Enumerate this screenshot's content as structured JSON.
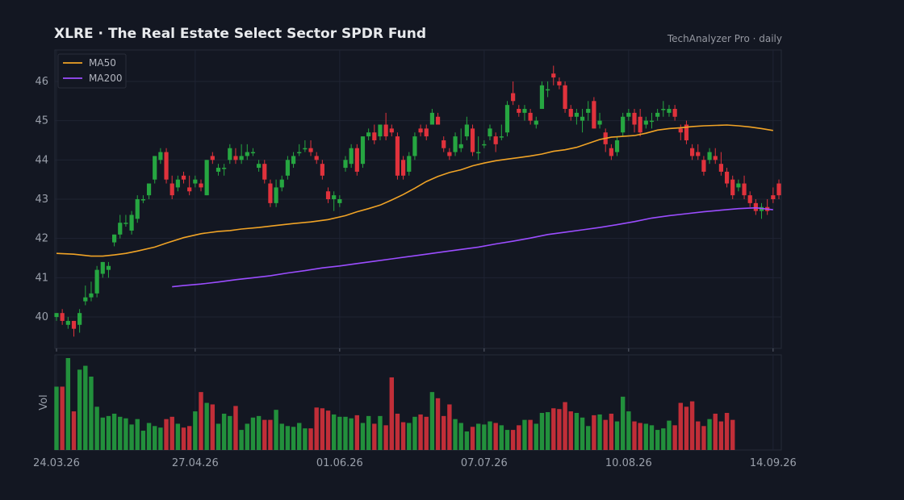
{
  "header": {
    "title": "XLRE  ·  The Real Estate Select Sector SPDR Fund",
    "brand": "TechAnalyzer Pro · daily"
  },
  "colors": {
    "background": "#131722",
    "grid": "#1f2433",
    "up": "#26a641",
    "down": "#e0323c",
    "ma50": "#f0a326",
    "ma200": "#9b4dff",
    "text": "#9aa0ab"
  },
  "chart_data": {
    "type": "candlestick",
    "title": "XLRE  ·  The Real Estate Select Sector SPDR Fund",
    "ylim": [
      39.2,
      46.8
    ],
    "y_ticks": [
      40,
      41,
      42,
      43,
      44,
      45,
      46
    ],
    "x_tick_labels": [
      "24.03.26",
      "27.04.26",
      "01.06.26",
      "07.07.26",
      "10.08.26",
      "14.09.26"
    ],
    "x_tick_index": [
      0,
      24,
      49,
      74,
      99,
      124
    ],
    "legend": [
      {
        "name": "MA50",
        "color": "#f0a326"
      },
      {
        "name": "MA200",
        "color": "#9b4dff"
      }
    ],
    "volume_label": "Vol",
    "ohlc": [
      [
        40.0,
        40.1,
        39.9,
        40.1
      ],
      [
        40.1,
        40.2,
        39.8,
        39.9
      ],
      [
        39.8,
        40.0,
        39.7,
        39.9
      ],
      [
        39.9,
        39.9,
        39.5,
        39.7
      ],
      [
        39.8,
        40.2,
        39.6,
        40.1
      ],
      [
        40.4,
        40.8,
        40.3,
        40.5
      ],
      [
        40.5,
        40.9,
        40.4,
        40.6
      ],
      [
        40.6,
        41.3,
        40.5,
        41.2
      ],
      [
        41.1,
        41.4,
        41.0,
        41.4
      ],
      [
        41.2,
        41.4,
        41.0,
        41.3
      ],
      [
        41.9,
        42.1,
        41.8,
        42.1
      ],
      [
        42.1,
        42.6,
        42.0,
        42.4
      ],
      [
        42.4,
        42.6,
        42.3,
        42.4
      ],
      [
        42.2,
        42.7,
        42.1,
        42.6
      ],
      [
        42.5,
        43.1,
        42.4,
        43.0
      ],
      [
        43.0,
        43.1,
        42.9,
        43.0
      ],
      [
        43.1,
        43.4,
        43.0,
        43.4
      ],
      [
        43.5,
        44.1,
        43.4,
        44.1
      ],
      [
        44.0,
        44.3,
        43.9,
        44.2
      ],
      [
        44.2,
        44.3,
        43.4,
        43.5
      ],
      [
        43.4,
        43.6,
        43.0,
        43.1
      ],
      [
        43.3,
        43.6,
        43.2,
        43.5
      ],
      [
        43.6,
        43.7,
        43.4,
        43.5
      ],
      [
        43.3,
        43.6,
        43.1,
        43.2
      ],
      [
        43.4,
        43.6,
        43.3,
        43.5
      ],
      [
        43.4,
        43.5,
        43.2,
        43.3
      ],
      [
        43.1,
        44.0,
        43.1,
        44.0
      ],
      [
        44.1,
        44.2,
        43.9,
        44.0
      ],
      [
        43.7,
        43.9,
        43.6,
        43.8
      ],
      [
        43.8,
        43.9,
        43.6,
        43.8
      ],
      [
        44.0,
        44.4,
        43.9,
        44.3
      ],
      [
        44.1,
        44.3,
        43.9,
        44.0
      ],
      [
        44.0,
        44.4,
        43.9,
        44.1
      ],
      [
        44.1,
        44.4,
        44.0,
        44.2
      ],
      [
        44.2,
        44.3,
        44.1,
        44.2
      ],
      [
        43.8,
        44.0,
        43.7,
        43.9
      ],
      [
        43.9,
        44.0,
        43.4,
        43.5
      ],
      [
        43.4,
        43.5,
        42.8,
        42.9
      ],
      [
        42.9,
        43.5,
        42.8,
        43.3
      ],
      [
        43.3,
        43.6,
        43.2,
        43.5
      ],
      [
        43.6,
        44.1,
        43.5,
        44.0
      ],
      [
        43.9,
        44.2,
        43.8,
        44.1
      ],
      [
        44.2,
        44.4,
        44.1,
        44.2
      ],
      [
        44.3,
        44.5,
        44.2,
        44.3
      ],
      [
        44.3,
        44.5,
        44.1,
        44.2
      ],
      [
        44.1,
        44.2,
        43.9,
        44.0
      ],
      [
        43.9,
        44.0,
        43.5,
        43.6
      ],
      [
        43.2,
        43.3,
        42.9,
        43.0
      ],
      [
        43.0,
        43.2,
        42.7,
        43.1
      ],
      [
        42.9,
        43.1,
        42.8,
        43.0
      ],
      [
        43.8,
        44.1,
        43.7,
        44.0
      ],
      [
        43.9,
        44.4,
        43.8,
        44.3
      ],
      [
        44.3,
        44.4,
        43.6,
        43.7
      ],
      [
        43.9,
        44.6,
        43.8,
        44.6
      ],
      [
        44.6,
        44.8,
        44.5,
        44.7
      ],
      [
        44.7,
        44.9,
        44.4,
        44.5
      ],
      [
        44.6,
        44.9,
        44.5,
        44.9
      ],
      [
        44.9,
        45.2,
        44.5,
        44.6
      ],
      [
        44.8,
        44.9,
        44.6,
        44.7
      ],
      [
        44.6,
        44.7,
        43.5,
        43.6
      ],
      [
        44.0,
        44.1,
        43.5,
        43.6
      ],
      [
        43.7,
        44.2,
        43.6,
        44.1
      ],
      [
        44.1,
        44.7,
        44.0,
        44.6
      ],
      [
        44.8,
        44.9,
        44.6,
        44.7
      ],
      [
        44.8,
        44.9,
        44.5,
        44.6
      ],
      [
        44.9,
        45.3,
        44.9,
        45.2
      ],
      [
        45.1,
        45.2,
        44.9,
        44.9
      ],
      [
        44.5,
        44.6,
        44.2,
        44.3
      ],
      [
        44.2,
        44.3,
        44.0,
        44.1
      ],
      [
        44.2,
        44.7,
        44.1,
        44.6
      ],
      [
        44.3,
        44.8,
        44.2,
        44.4
      ],
      [
        44.6,
        45.1,
        44.5,
        44.9
      ],
      [
        44.8,
        44.9,
        44.1,
        44.2
      ],
      [
        44.2,
        44.6,
        44.0,
        44.2
      ],
      [
        44.4,
        44.5,
        44.3,
        44.4
      ],
      [
        44.6,
        44.9,
        44.5,
        44.8
      ],
      [
        44.6,
        44.7,
        44.2,
        44.4
      ],
      [
        44.6,
        44.9,
        44.5,
        44.6
      ],
      [
        44.7,
        45.5,
        44.6,
        45.4
      ],
      [
        45.7,
        46.0,
        45.4,
        45.5
      ],
      [
        45.3,
        45.4,
        45.1,
        45.2
      ],
      [
        45.2,
        45.4,
        45.0,
        45.3
      ],
      [
        45.2,
        45.3,
        44.9,
        45.0
      ],
      [
        44.9,
        45.1,
        44.8,
        45.0
      ],
      [
        45.3,
        46.0,
        45.3,
        45.9
      ],
      [
        45.8,
        46.0,
        45.6,
        45.8
      ],
      [
        46.2,
        46.4,
        45.9,
        46.1
      ],
      [
        46.0,
        46.1,
        45.8,
        45.9
      ],
      [
        45.9,
        46.0,
        45.2,
        45.3
      ],
      [
        45.3,
        45.4,
        45.0,
        45.1
      ],
      [
        45.1,
        45.3,
        44.9,
        45.2
      ],
      [
        45.0,
        45.3,
        44.7,
        45.1
      ],
      [
        45.2,
        45.5,
        45.0,
        45.3
      ],
      [
        45.5,
        45.6,
        44.8,
        44.8
      ],
      [
        44.9,
        45.2,
        44.8,
        45.0
      ],
      [
        44.7,
        44.8,
        44.2,
        44.4
      ],
      [
        44.3,
        44.4,
        44.0,
        44.1
      ],
      [
        44.2,
        44.6,
        44.1,
        44.5
      ],
      [
        44.7,
        45.2,
        44.6,
        45.1
      ],
      [
        45.1,
        45.3,
        45.0,
        45.2
      ],
      [
        45.2,
        45.3,
        44.7,
        44.9
      ],
      [
        45.1,
        45.3,
        44.6,
        44.7
      ],
      [
        44.9,
        45.1,
        44.8,
        45.0
      ],
      [
        45.0,
        45.2,
        44.8,
        45.0
      ],
      [
        45.1,
        45.3,
        45.0,
        45.2
      ],
      [
        45.3,
        45.5,
        45.1,
        45.3
      ],
      [
        45.2,
        45.4,
        45.1,
        45.3
      ],
      [
        45.3,
        45.4,
        45.0,
        45.1
      ],
      [
        44.8,
        44.9,
        44.5,
        44.7
      ],
      [
        44.9,
        45.0,
        44.4,
        44.5
      ],
      [
        44.3,
        44.4,
        44.0,
        44.1
      ],
      [
        44.2,
        44.4,
        44.0,
        44.1
      ],
      [
        44.0,
        44.1,
        43.6,
        43.7
      ],
      [
        44.0,
        44.3,
        43.9,
        44.2
      ],
      [
        44.1,
        44.3,
        43.9,
        44.0
      ],
      [
        43.9,
        44.2,
        43.6,
        43.7
      ],
      [
        43.7,
        43.8,
        43.3,
        43.4
      ],
      [
        43.5,
        43.6,
        43.0,
        43.1
      ],
      [
        43.3,
        43.5,
        43.2,
        43.4
      ],
      [
        43.4,
        43.6,
        43.0,
        43.1
      ],
      [
        43.1,
        43.2,
        42.8,
        42.9
      ],
      [
        42.9,
        43.0,
        42.6,
        42.7
      ],
      [
        42.7,
        42.9,
        42.5,
        42.8
      ],
      [
        42.8,
        43.0,
        42.6,
        42.7
      ],
      [
        43.1,
        43.3,
        42.9,
        43.0
      ],
      [
        43.4,
        43.5,
        43.0,
        43.1
      ]
    ],
    "volume": [
      82,
      82,
      119,
      50,
      104,
      109,
      95,
      56,
      42,
      44,
      47,
      43,
      41,
      33,
      40,
      25,
      35,
      31,
      29,
      40,
      43,
      34,
      29,
      31,
      50,
      75,
      61,
      59,
      34,
      47,
      44,
      57,
      26,
      34,
      42,
      44,
      39,
      39,
      52,
      34,
      31,
      30,
      35,
      28,
      28,
      55,
      54,
      51,
      46,
      43,
      43,
      41,
      45,
      35,
      44,
      34,
      44,
      32,
      94,
      47,
      36,
      35,
      43,
      46,
      43,
      75,
      67,
      44,
      59,
      40,
      35,
      24,
      30,
      34,
      33,
      37,
      35,
      32,
      26,
      26,
      32,
      39,
      39,
      34,
      48,
      49,
      54,
      53,
      62,
      50,
      48,
      42,
      31,
      45,
      46,
      39,
      47,
      37,
      69,
      50,
      37,
      35,
      34,
      32,
      26,
      28,
      38,
      32,
      61,
      56,
      63,
      37,
      31,
      40,
      47,
      37,
      48,
      39
    ],
    "ma50": [
      [
        0,
        41.62
      ],
      [
        3,
        41.6
      ],
      [
        6,
        41.55
      ],
      [
        8,
        41.55
      ],
      [
        10,
        41.58
      ],
      [
        12,
        41.62
      ],
      [
        14,
        41.68
      ],
      [
        17,
        41.78
      ],
      [
        19,
        41.88
      ],
      [
        22,
        42.02
      ],
      [
        25,
        42.12
      ],
      [
        28,
        42.18
      ],
      [
        30,
        42.2
      ],
      [
        32,
        42.24
      ],
      [
        35,
        42.28
      ],
      [
        38,
        42.33
      ],
      [
        41,
        42.38
      ],
      [
        44,
        42.42
      ],
      [
        47,
        42.48
      ],
      [
        50,
        42.58
      ],
      [
        52,
        42.68
      ],
      [
        54,
        42.76
      ],
      [
        56,
        42.85
      ],
      [
        58,
        42.98
      ],
      [
        60,
        43.12
      ],
      [
        62,
        43.28
      ],
      [
        64,
        43.45
      ],
      [
        66,
        43.58
      ],
      [
        68,
        43.68
      ],
      [
        70,
        43.75
      ],
      [
        72,
        43.85
      ],
      [
        74,
        43.92
      ],
      [
        76,
        43.98
      ],
      [
        78,
        44.02
      ],
      [
        80,
        44.06
      ],
      [
        82,
        44.1
      ],
      [
        84,
        44.15
      ],
      [
        86,
        44.22
      ],
      [
        88,
        44.26
      ],
      [
        90,
        44.32
      ],
      [
        92,
        44.42
      ],
      [
        94,
        44.52
      ],
      [
        96,
        44.58
      ],
      [
        98,
        44.6
      ],
      [
        100,
        44.62
      ],
      [
        102,
        44.68
      ],
      [
        104,
        44.76
      ],
      [
        106,
        44.8
      ],
      [
        108,
        44.82
      ],
      [
        110,
        44.85
      ],
      [
        112,
        44.87
      ],
      [
        114,
        44.88
      ],
      [
        116,
        44.89
      ],
      [
        118,
        44.87
      ],
      [
        120,
        44.84
      ],
      [
        122,
        44.8
      ],
      [
        124,
        44.75
      ]
    ],
    "ma200": [
      [
        20,
        40.77
      ],
      [
        22,
        40.8
      ],
      [
        25,
        40.84
      ],
      [
        28,
        40.89
      ],
      [
        31,
        40.95
      ],
      [
        34,
        41.0
      ],
      [
        37,
        41.05
      ],
      [
        40,
        41.12
      ],
      [
        43,
        41.18
      ],
      [
        46,
        41.25
      ],
      [
        49,
        41.3
      ],
      [
        52,
        41.36
      ],
      [
        55,
        41.42
      ],
      [
        58,
        41.48
      ],
      [
        61,
        41.54
      ],
      [
        64,
        41.6
      ],
      [
        67,
        41.66
      ],
      [
        70,
        41.72
      ],
      [
        73,
        41.78
      ],
      [
        76,
        41.86
      ],
      [
        79,
        41.93
      ],
      [
        82,
        42.01
      ],
      [
        85,
        42.1
      ],
      [
        88,
        42.16
      ],
      [
        91,
        42.22
      ],
      [
        94,
        42.28
      ],
      [
        97,
        42.35
      ],
      [
        100,
        42.43
      ],
      [
        103,
        42.52
      ],
      [
        106,
        42.58
      ],
      [
        109,
        42.63
      ],
      [
        112,
        42.68
      ],
      [
        115,
        42.72
      ],
      [
        118,
        42.76
      ],
      [
        121,
        42.78
      ],
      [
        124,
        42.73
      ]
    ]
  }
}
